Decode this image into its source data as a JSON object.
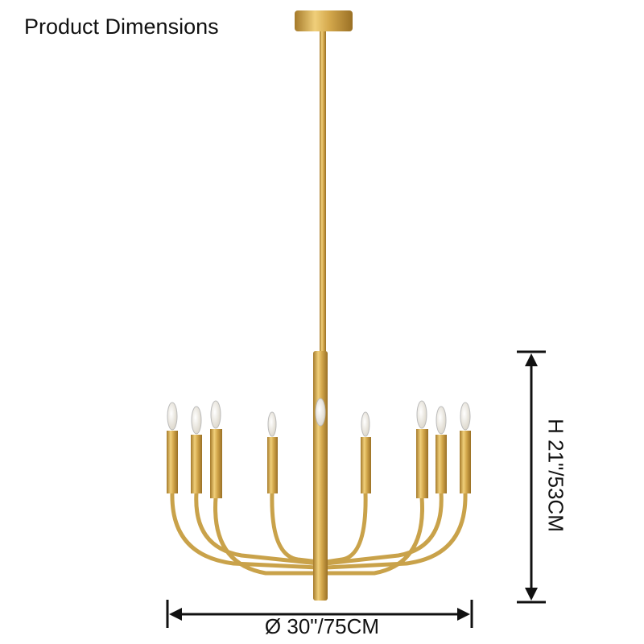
{
  "title": "Product Dimensions",
  "dimensions": {
    "width_label": "Ø 30\"/75CM",
    "height_label": "H 21\"/53CM"
  },
  "product": {
    "type": "chandelier",
    "lights": 9,
    "finish_color": "#c9a24a"
  }
}
